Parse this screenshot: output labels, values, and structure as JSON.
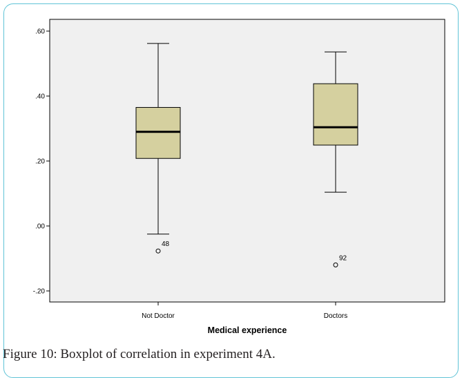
{
  "caption": "Figure 10: Boxplot of correlation in experiment 4A.",
  "chart_data": {
    "type": "boxplot",
    "xlabel": "Medical experience",
    "ylabel": "",
    "ylim": [
      -0.25,
      0.64
    ],
    "yticks": [
      -0.2,
      0.0,
      0.2,
      0.4,
      0.6
    ],
    "ytick_labels": [
      "-.20",
      ".00",
      ".20",
      ".40",
      ".60"
    ],
    "categories": [
      "Not Doctor",
      "Doctors"
    ],
    "grid": false,
    "plot_background": "#f0f0f0",
    "box_fill": "#d5d09f",
    "boxes": [
      {
        "category": "Not Doctor",
        "whisker_low": -0.025,
        "q1": 0.208,
        "median": 0.29,
        "q3": 0.365,
        "whisker_high": 0.562,
        "outliers": [
          {
            "value": -0.077,
            "label": "48"
          }
        ]
      },
      {
        "category": "Doctors",
        "whisker_low": 0.104,
        "q1": 0.249,
        "median": 0.304,
        "q3": 0.438,
        "whisker_high": 0.536,
        "outliers": [
          {
            "value": -0.12,
            "label": "92"
          }
        ]
      }
    ]
  }
}
